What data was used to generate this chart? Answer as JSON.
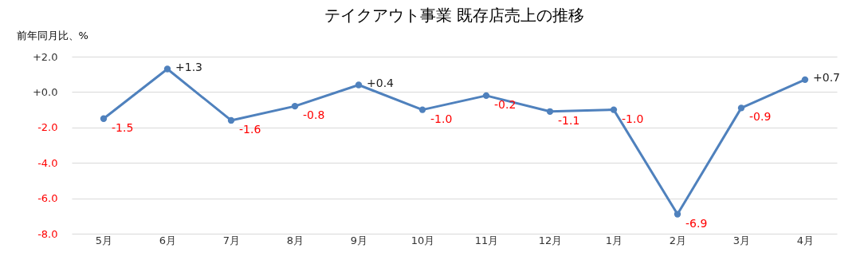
{
  "chart_data": {
    "type": "line",
    "title": "テイクアウト事業 既存店売上の推移",
    "ylabel": "前年同月比、%",
    "categories": [
      "5月",
      "6月",
      "7月",
      "8月",
      "9月",
      "10月",
      "11月",
      "12月",
      "1月",
      "2月",
      "3月",
      "4月"
    ],
    "series": [
      {
        "color": "#4f81bd",
        "values": [
          -1.5,
          1.3,
          -1.6,
          -0.8,
          0.4,
          -1.0,
          -0.2,
          -1.1,
          -1.0,
          -6.9,
          -0.9,
          0.7
        ],
        "value_labels": [
          "-1.5",
          "+1.3",
          "-1.6",
          "-0.8",
          "+0.4",
          "-1.0",
          "-0.2",
          "-1.1",
          "-1.0",
          "-6.9",
          "-0.9",
          "+0.7"
        ]
      }
    ],
    "ylim": [
      -8,
      2
    ],
    "yticks": [
      {
        "value": 2,
        "label": "+2.0"
      },
      {
        "value": 0,
        "label": "+0.0"
      },
      {
        "value": -2,
        "label": "-2.0"
      },
      {
        "value": -4,
        "label": "-4.0"
      },
      {
        "value": -6,
        "label": "-6.0"
      },
      {
        "value": -8,
        "label": "-8.0"
      }
    ],
    "grid": "y",
    "marker": "circle",
    "line_style": "solid"
  }
}
